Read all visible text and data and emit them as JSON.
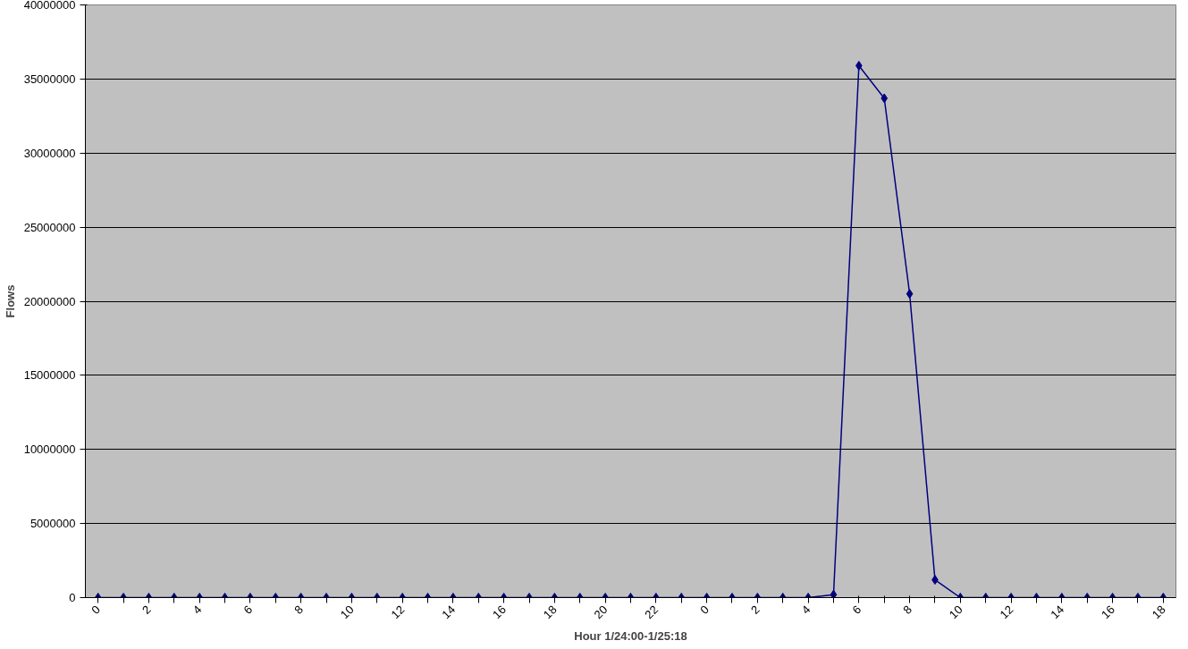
{
  "chart_data": {
    "type": "line",
    "xlabel": "Hour 1/24:00-1/25:18",
    "ylabel": "Flows",
    "categories": [
      "0",
      null,
      "2",
      null,
      "4",
      null,
      "6",
      null,
      "8",
      null,
      "10",
      null,
      "12",
      null,
      "14",
      null,
      "16",
      null,
      "18",
      null,
      "20",
      null,
      "22",
      null,
      "0",
      null,
      "2",
      null,
      "4",
      null,
      "6",
      null,
      "8",
      null,
      "10",
      null,
      "12",
      null,
      "14",
      null,
      "16",
      null,
      "18"
    ],
    "series": [
      {
        "color": "#000080",
        "values": [
          0,
          0,
          0,
          0,
          0,
          0,
          0,
          0,
          0,
          0,
          0,
          0,
          0,
          0,
          0,
          0,
          0,
          0,
          0,
          0,
          0,
          0,
          0,
          0,
          0,
          0,
          0,
          0,
          0,
          200000,
          35900000,
          33700000,
          20500000,
          1200000,
          0,
          0,
          0,
          0,
          0,
          0,
          0,
          0,
          0
        ]
      }
    ],
    "ylim": [
      0,
      40000000
    ],
    "yticks": [
      0,
      5000000,
      10000000,
      15000000,
      20000000,
      25000000,
      30000000,
      35000000,
      40000000
    ],
    "grid": "y",
    "marker": "diamond",
    "line_style": "solid"
  }
}
